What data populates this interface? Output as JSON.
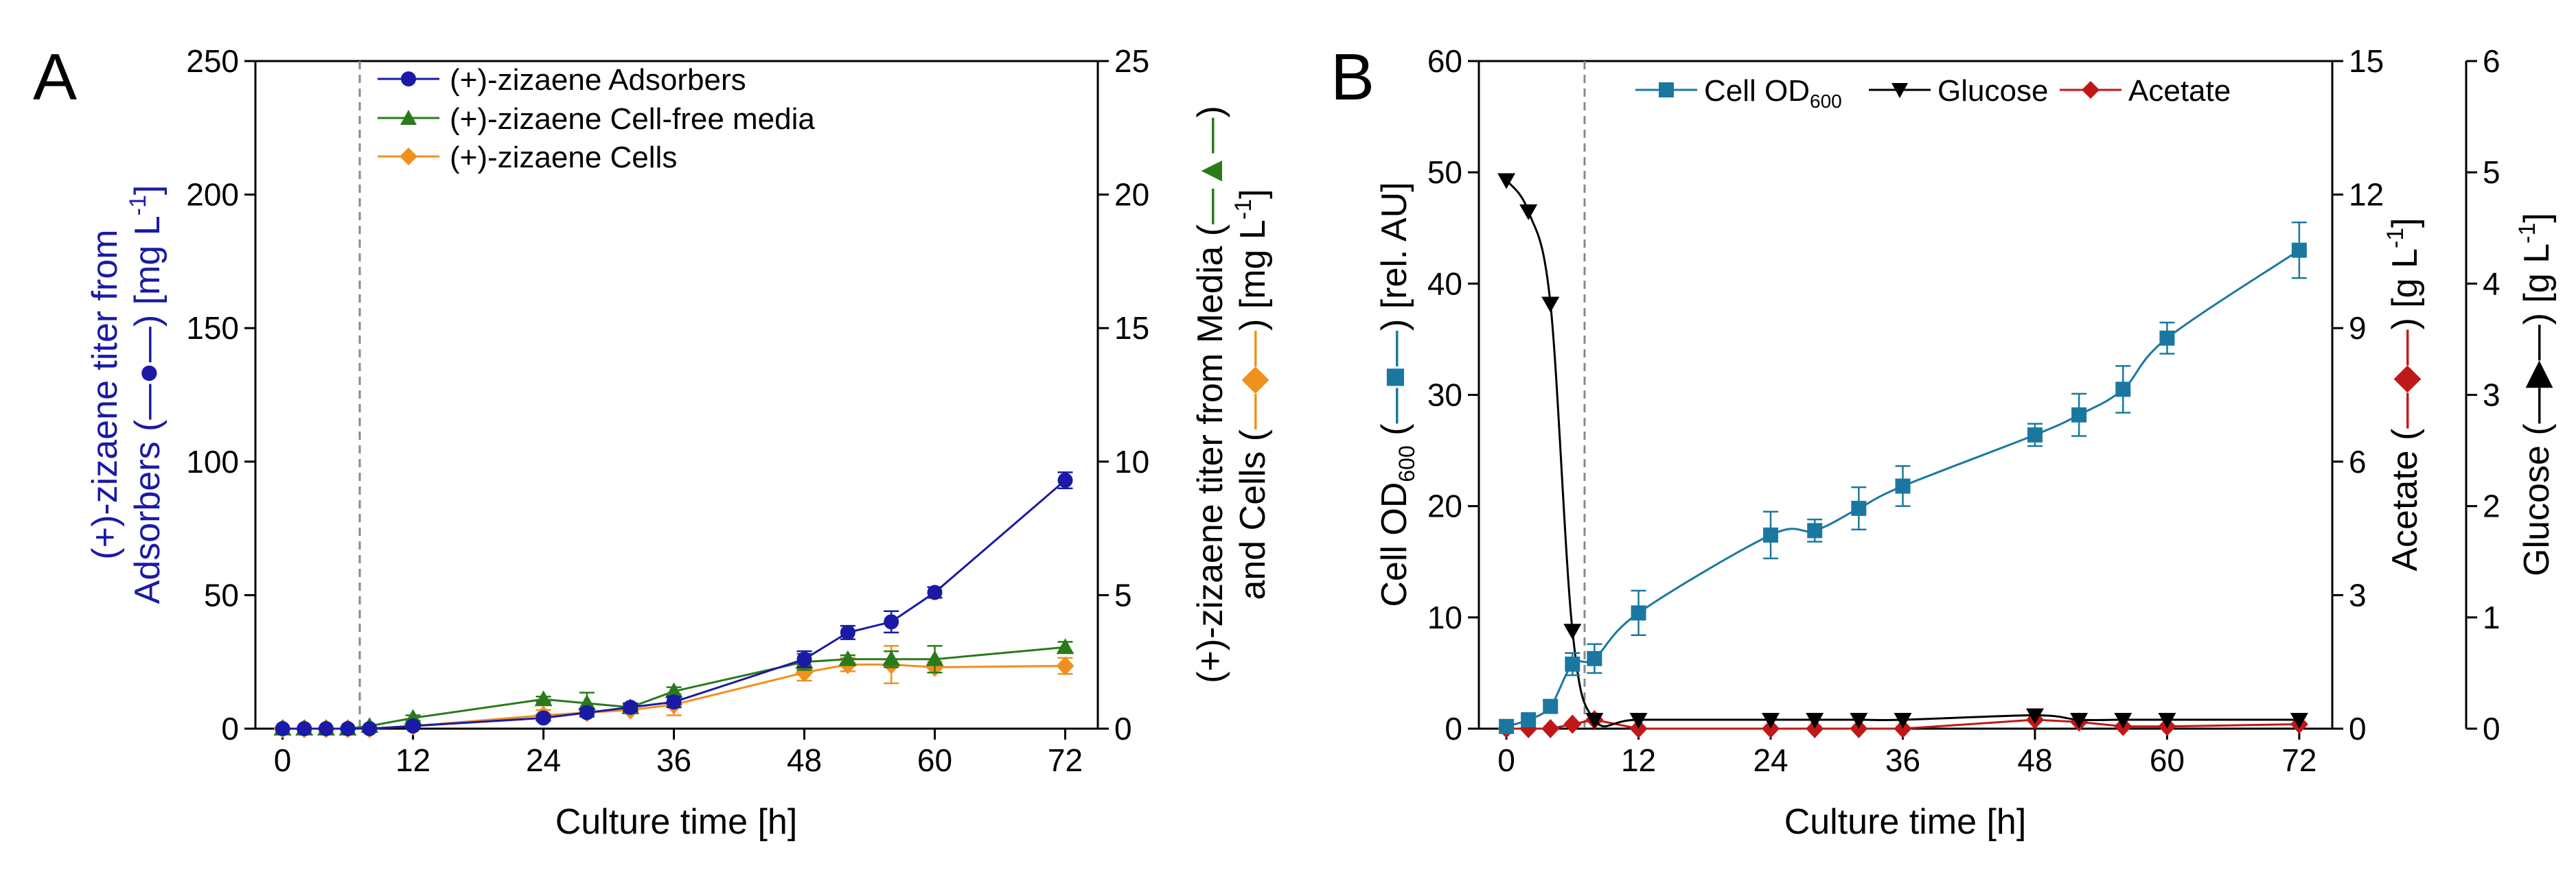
{
  "chart_data": [
    {
      "panel": "A",
      "type": "line",
      "xlabel": "Culture time [h]",
      "xlim": [
        -2.5,
        75
      ],
      "xticks": [
        0,
        12,
        24,
        36,
        48,
        60,
        72
      ],
      "induction_line_x": 7,
      "ylabel_left_line1": "(+)-zizaene titer from",
      "ylabel_left_line2": "Adsorbers (",
      "ylabel_left_line2b": ") [mg L",
      "ylabel_left_sup": "-1",
      "ylabel_left_end": "]",
      "ylim_left": [
        0,
        250
      ],
      "yticks_left": [
        0,
        50,
        100,
        150,
        200,
        250
      ],
      "ylabel_right_line1": "(+)-zizaene titer from Media (",
      "ylabel_right_line1b": ")",
      "ylabel_right_line2": "and  Cells (",
      "ylabel_right_line2b": ") [mg L",
      "ylabel_right_sup": "-1",
      "ylabel_right_end": "]",
      "ylim_right": [
        0,
        25
      ],
      "yticks_right": [
        0,
        5,
        10,
        15,
        20,
        25
      ],
      "series": [
        {
          "name": "(+)-zizaene Adsorbers",
          "axis": "left",
          "marker": "circle",
          "color": "#1a1aa6",
          "x": [
            0,
            2,
            4,
            6,
            8,
            12,
            24,
            28,
            32,
            36,
            48,
            52,
            56,
            60,
            72
          ],
          "y": [
            0,
            0,
            0,
            0,
            0,
            1,
            4,
            6,
            8,
            10,
            26,
            36,
            40,
            51,
            93
          ],
          "err": [
            0,
            0,
            0,
            0,
            0,
            0.5,
            1,
            1.5,
            1.5,
            2,
            3,
            2.5,
            4,
            2,
            3
          ]
        },
        {
          "name": "(+)-zizaene Cell-free media",
          "axis": "right",
          "marker": "triangle",
          "color": "#2a7a1a",
          "x": [
            0,
            2,
            4,
            6,
            8,
            12,
            24,
            28,
            32,
            36,
            48,
            52,
            56,
            60,
            72
          ],
          "y": [
            0,
            0,
            0,
            0,
            0.1,
            0.4,
            1.1,
            0.95,
            0.8,
            1.4,
            2.5,
            2.6,
            2.6,
            2.6,
            3.05
          ],
          "err": [
            0,
            0,
            0,
            0,
            0,
            0.1,
            0.1,
            0.4,
            0.1,
            0.15,
            0.3,
            0.15,
            0.3,
            0.5,
            0.2
          ]
        },
        {
          "name": "(+)-zizaene Cells",
          "axis": "right",
          "marker": "diamond",
          "color": "#f0901e",
          "x": [
            0,
            2,
            4,
            6,
            8,
            12,
            24,
            28,
            32,
            36,
            48,
            52,
            56,
            60,
            72
          ],
          "y": [
            0,
            0,
            0,
            0,
            0,
            0.1,
            0.5,
            0.6,
            0.7,
            0.9,
            2.1,
            2.4,
            2.4,
            2.3,
            2.35
          ],
          "err": [
            0,
            0,
            0,
            0,
            0,
            0.05,
            0.2,
            0.1,
            0.1,
            0.4,
            0.3,
            0.25,
            0.7,
            0.2,
            0.3
          ]
        }
      ]
    },
    {
      "panel": "B",
      "type": "line",
      "xlabel": "Culture time [h]",
      "xlim": [
        -2.5,
        75
      ],
      "xticks": [
        0,
        12,
        24,
        36,
        48,
        60,
        72
      ],
      "induction_line_x": 7,
      "ylabel_left": "Cell OD",
      "ylabel_left_sub": "600",
      "ylabel_left_b": " (",
      "ylabel_left_c": ") [rel. AU]",
      "ylim_left": [
        0,
        60
      ],
      "yticks_left": [
        0,
        10,
        20,
        30,
        40,
        50,
        60
      ],
      "ylabel_right1": "Acetate (",
      "ylabel_right1_b": ") [g L",
      "ylabel_right1_sup": "-1",
      "ylabel_right1_end": "]",
      "ylim_right1": [
        0,
        15
      ],
      "yticks_right1": [
        0,
        3,
        6,
        9,
        12,
        15
      ],
      "ylabel_right2": "Glucose (",
      "ylabel_right2_b": ") [g L",
      "ylabel_right2_sup": "-1",
      "ylabel_right2_end": "]",
      "ylim_right2": [
        0,
        6
      ],
      "yticks_right2": [
        0,
        1,
        2,
        3,
        4,
        5,
        6
      ],
      "series": [
        {
          "name": "Cell OD",
          "name_sub": "600",
          "axis": "left",
          "marker": "square",
          "color": "#1a78a0",
          "x": [
            0,
            2,
            4,
            6,
            8,
            12,
            24,
            28,
            32,
            36,
            48,
            52,
            56,
            60,
            72
          ],
          "y": [
            0.2,
            0.8,
            2,
            5.8,
            6.3,
            10.4,
            17.4,
            17.8,
            19.8,
            21.8,
            26.4,
            28.2,
            30.5,
            35.1,
            43
          ],
          "err": [
            0,
            0.2,
            0.5,
            1,
            1.3,
            2,
            2.1,
            1,
            1.9,
            1.8,
            1,
            1.9,
            2.1,
            1.4,
            2.5
          ]
        },
        {
          "name": "Glucose",
          "axis": "right2",
          "marker": "triangle-down",
          "color": "#000000",
          "x": [
            0,
            2,
            4,
            6,
            8,
            12,
            24,
            28,
            32,
            36,
            48,
            52,
            56,
            60,
            72
          ],
          "y": [
            4.93,
            4.65,
            3.82,
            0.88,
            0.08,
            0.08,
            0.08,
            0.08,
            0.08,
            0.08,
            0.12,
            0.08,
            0.08,
            0.08,
            0.08
          ],
          "err": [
            0,
            0,
            0,
            0,
            0,
            0,
            0,
            0,
            0,
            0,
            0,
            0,
            0,
            0,
            0
          ]
        },
        {
          "name": "Acetate",
          "axis": "right1",
          "marker": "diamond",
          "color": "#c01818",
          "x": [
            0,
            2,
            4,
            6,
            8,
            12,
            24,
            28,
            32,
            36,
            48,
            52,
            56,
            60,
            72
          ],
          "y": [
            0,
            0,
            0,
            0.1,
            0.2,
            0,
            0,
            0,
            0,
            0,
            0.2,
            0.15,
            0.05,
            0.05,
            0.1
          ],
          "err": [
            0,
            0,
            0,
            0,
            0,
            0,
            0,
            0,
            0,
            0,
            0,
            0,
            0,
            0,
            0
          ]
        }
      ]
    }
  ]
}
